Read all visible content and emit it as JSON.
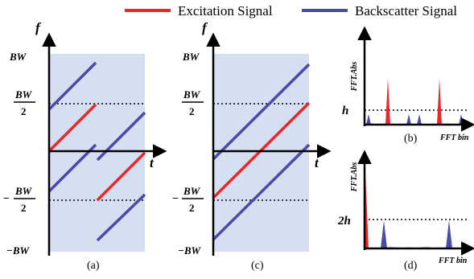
{
  "legend": {
    "excitation": "Excitation Signal",
    "backscatter": "Backscatter Signal"
  },
  "colors": {
    "excitation": "#e8282b",
    "backscatter": "#4a4aa8",
    "panel_bg": "#d4dff2",
    "axis": "#000000"
  },
  "panels": {
    "a": {
      "caption": "(a)",
      "y_axis": "f",
      "x_axis": "t",
      "y_labels": {
        "bw": "BW",
        "half_num": "BW",
        "half_den": "2",
        "neg_sign": "−",
        "neg_half_num": "BW",
        "neg_half_den": "2",
        "neg_bw": "−BW"
      }
    },
    "c": {
      "caption": "(c)",
      "y_axis": "f",
      "x_axis": "t",
      "y_labels": {
        "bw": "BW",
        "half_num": "BW",
        "half_den": "2",
        "neg_sign": "−",
        "neg_half_num": "BW",
        "neg_half_den": "2",
        "neg_bw": "−BW"
      }
    },
    "b": {
      "caption": "(b)",
      "y_axis": "FFT.Abs",
      "x_axis": "FFT bin",
      "threshold": "h"
    },
    "d": {
      "caption": "(d)",
      "y_axis": "FFT.Abs",
      "x_axis": "FFT bin",
      "threshold": "2h"
    }
  }
}
